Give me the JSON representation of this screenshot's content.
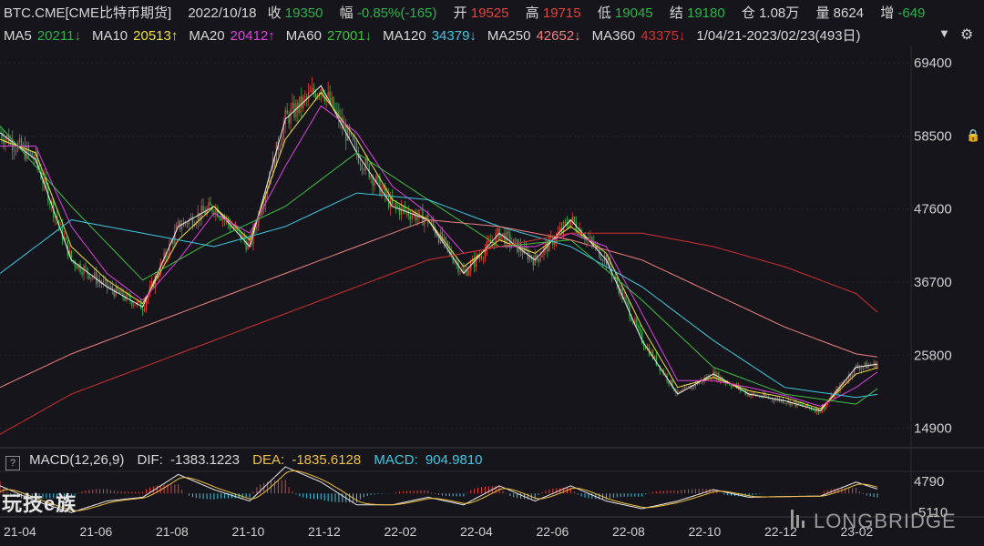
{
  "header": {
    "symbol": "BTC.CME[CME比特币期货]",
    "date": "2022/10/18",
    "close_label": "收",
    "close": "19350",
    "change_label": "幅",
    "change": "-0.85%(-165)",
    "open_label": "开",
    "open": "19525",
    "high_label": "高",
    "high": "19715",
    "low_label": "低",
    "low": "19045",
    "settle_label": "结",
    "settle": "19180",
    "oi_label": "仓",
    "oi": "1.08万",
    "vol_label": "量",
    "vol": "8624",
    "oichg_label": "增",
    "oichg": "-649"
  },
  "ma_row": {
    "items": [
      {
        "label": "MA5",
        "value": "20211↓",
        "color": "#f0f0f0",
        "vcolor": "#2bb34a"
      },
      {
        "label": "MA10",
        "value": "20513↑",
        "color": "#f0e040",
        "vcolor": "#f0e040"
      },
      {
        "label": "MA20",
        "value": "20412↑",
        "color": "#e040e0",
        "vcolor": "#e040e0"
      },
      {
        "label": "MA60",
        "value": "27001↓",
        "color": "#40c040",
        "vcolor": "#40c040"
      },
      {
        "label": "MA120",
        "value": "34379↓",
        "color": "#40c8e0",
        "vcolor": "#40c8e0"
      },
      {
        "label": "MA250",
        "value": "42652↓",
        "color": "#f08080",
        "vcolor": "#f08080"
      },
      {
        "label": "MA360",
        "value": "43375↓",
        "color": "#d03030",
        "vcolor": "#d03030"
      }
    ],
    "range": "1/04/21-2023/02/23(493日)"
  },
  "macd": {
    "title": "MACD(12,26,9)",
    "dif_label": "DIF:",
    "dif": "-1383.1223",
    "dea_label": "DEA:",
    "dea": "-1835.6128",
    "macd_label": "MACD:",
    "macd": "904.9810",
    "ytick_top": "4790",
    "ytick_bottom": "-5110"
  },
  "watermark_left": "玩技e族",
  "watermark_right": "LONGBRIDGE",
  "colors": {
    "up": "#e8413c",
    "down": "#2bb34a",
    "bg": "#15151b",
    "ma5": "#f0f0f0",
    "ma10": "#f0e040",
    "ma20": "#e040e0",
    "ma60": "#40c040",
    "ma120": "#40c8e0",
    "ma250": "#f08080",
    "ma360": "#d03030"
  },
  "chart_data": {
    "type": "line",
    "title": "",
    "xlabel": "",
    "ylabel": "",
    "ylim": [
      12000,
      72000
    ],
    "yticks": [
      69400,
      58500,
      47600,
      36700,
      25800,
      14900
    ],
    "xticks": [
      "21-04",
      "21-06",
      "21-08",
      "21-10",
      "21-12",
      "22-02",
      "22-04",
      "22-06",
      "22-08",
      "22-10",
      "22-12",
      "23-02"
    ],
    "grid": true,
    "series": [
      {
        "name": "MA5",
        "x": [
          0,
          20,
          40,
          60,
          80,
          100,
          120,
          140,
          160,
          180,
          200,
          220,
          240,
          260,
          280,
          300,
          320,
          340,
          360,
          380,
          400,
          420,
          440,
          460,
          480,
          493
        ],
        "values": [
          59000,
          55000,
          40000,
          36000,
          33000,
          45000,
          48000,
          42000,
          61000,
          66000,
          56000,
          48000,
          46000,
          38000,
          44000,
          40000,
          46000,
          40000,
          28000,
          20000,
          23000,
          20000,
          19000,
          17500,
          24000,
          24500
        ]
      },
      {
        "name": "MA10",
        "x": [
          0,
          20,
          40,
          60,
          80,
          100,
          120,
          140,
          160,
          180,
          200,
          220,
          240,
          260,
          280,
          300,
          320,
          340,
          360,
          380,
          400,
          420,
          440,
          460,
          480,
          493
        ],
        "values": [
          58000,
          56000,
          42000,
          37000,
          33500,
          43000,
          48000,
          43000,
          58000,
          65000,
          58000,
          49000,
          46000,
          39000,
          43000,
          41000,
          45000,
          41000,
          30000,
          21000,
          22500,
          20500,
          19500,
          17800,
          23000,
          24000
        ]
      },
      {
        "name": "MA20",
        "x": [
          0,
          20,
          40,
          60,
          80,
          100,
          120,
          140,
          160,
          180,
          200,
          220,
          240,
          260,
          280,
          300,
          320,
          340,
          360,
          380,
          400,
          420,
          440,
          460,
          480,
          493
        ],
        "values": [
          57000,
          57000,
          45000,
          38000,
          34000,
          40000,
          47000,
          44000,
          54000,
          63000,
          59000,
          51000,
          47000,
          41000,
          42000,
          42000,
          44000,
          42000,
          32000,
          22000,
          22000,
          21000,
          19800,
          18200,
          21000,
          23500
        ]
      },
      {
        "name": "MA60",
        "x": [
          0,
          40,
          80,
          120,
          160,
          200,
          240,
          280,
          320,
          360,
          400,
          440,
          480,
          493
        ],
        "values": [
          60000,
          48000,
          37000,
          43000,
          48000,
          56000,
          49000,
          42000,
          43000,
          34000,
          24000,
          20000,
          18500,
          21000
        ]
      },
      {
        "name": "MA120",
        "x": [
          0,
          40,
          80,
          120,
          160,
          200,
          240,
          280,
          320,
          360,
          400,
          440,
          480,
          493
        ],
        "values": [
          38000,
          46000,
          44000,
          42000,
          45000,
          50000,
          49000,
          45000,
          42000,
          36000,
          28000,
          21000,
          19500,
          20000
        ]
      },
      {
        "name": "MA250",
        "x": [
          0,
          40,
          80,
          120,
          160,
          200,
          240,
          280,
          320,
          360,
          400,
          440,
          480,
          493
        ],
        "values": [
          21000,
          26000,
          30000,
          34000,
          38000,
          42000,
          46000,
          45000,
          43000,
          40000,
          35000,
          30000,
          26000,
          25500
        ]
      },
      {
        "name": "MA360",
        "x": [
          0,
          40,
          80,
          120,
          160,
          200,
          240,
          280,
          320,
          360,
          400,
          440,
          480,
          493
        ],
        "values": [
          14000,
          20000,
          24000,
          28000,
          32000,
          36000,
          40000,
          42000,
          44000,
          44000,
          42000,
          39000,
          35000,
          32000
        ]
      }
    ],
    "macd_ylim": [
      -5110,
      4790
    ]
  }
}
